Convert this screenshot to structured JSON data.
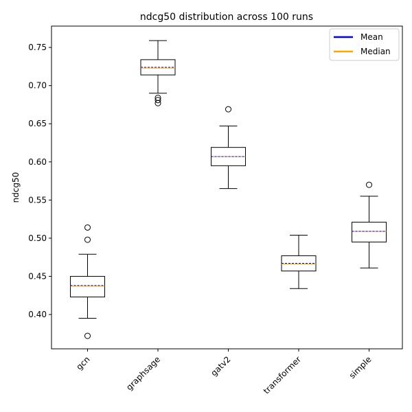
{
  "chart_data": {
    "type": "box",
    "title": "ndcg50 distribution across 100 runs",
    "xlabel": "",
    "ylabel": "ndcg50",
    "ylim": [
      0.355,
      0.778
    ],
    "yticks": [
      "0.40",
      "0.45",
      "0.50",
      "0.55",
      "0.60",
      "0.65",
      "0.70",
      "0.75"
    ],
    "categories": [
      "gcn",
      "graphsage",
      "gatv2",
      "transformer",
      "simple"
    ],
    "boxes": [
      {
        "name": "gcn",
        "whisker_low": 0.395,
        "q1": 0.423,
        "median": 0.437,
        "mean": 0.438,
        "q3": 0.45,
        "whisker_high": 0.479,
        "outliers": [
          0.514,
          0.498,
          0.372
        ]
      },
      {
        "name": "graphsage",
        "whisker_low": 0.69,
        "q1": 0.714,
        "median": 0.723,
        "mean": 0.724,
        "q3": 0.734,
        "whisker_high": 0.759,
        "outliers": [
          0.684,
          0.681,
          0.677
        ]
      },
      {
        "name": "gatv2",
        "whisker_low": 0.565,
        "q1": 0.595,
        "median": 0.607,
        "mean": 0.607,
        "q3": 0.619,
        "whisker_high": 0.647,
        "outliers": [
          0.669
        ]
      },
      {
        "name": "transformer",
        "whisker_low": 0.434,
        "q1": 0.457,
        "median": 0.466,
        "mean": 0.467,
        "q3": 0.477,
        "whisker_high": 0.504,
        "outliers": []
      },
      {
        "name": "simple",
        "whisker_low": 0.461,
        "q1": 0.495,
        "median": 0.509,
        "mean": 0.509,
        "q3": 0.521,
        "whisker_high": 0.555,
        "outliers": [
          0.57
        ]
      }
    ],
    "legend": {
      "placement": "top-right",
      "entries": [
        {
          "label": "Mean",
          "color": "#0000ff"
        },
        {
          "label": "Median",
          "color": "#ffa500"
        }
      ]
    },
    "colors": {
      "mean": "#0000ff",
      "median": "#ffa500",
      "box": "#000000"
    }
  }
}
